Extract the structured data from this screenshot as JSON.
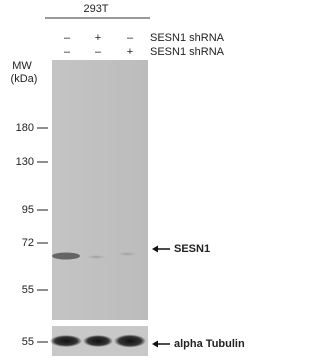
{
  "header": {
    "cell_line": "293T"
  },
  "conditions": [
    {
      "signs": [
        "–",
        "+",
        "–"
      ],
      "label": "SESN1 shRNA"
    },
    {
      "signs": [
        "–",
        "–",
        "+"
      ],
      "label": "SESN1 shRNA"
    }
  ],
  "mw": {
    "title": "MW",
    "unit": "(kDa)",
    "markers": [
      "180",
      "130",
      "95",
      "72",
      "55"
    ]
  },
  "bands": {
    "main": "SESN1",
    "loading": {
      "marker": "55",
      "label": "alpha Tubulin"
    }
  }
}
